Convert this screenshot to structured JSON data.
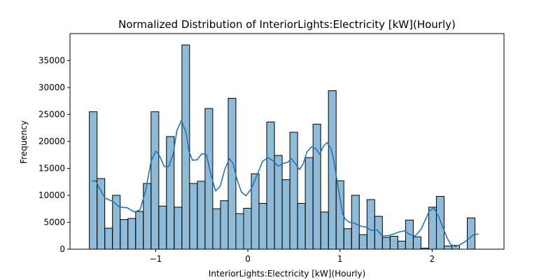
{
  "chart_data": {
    "type": "bar",
    "subtype": "histogram-with-kde",
    "title": "Normalized Distribution of InteriorLights:Electricity [kW](Hourly)",
    "xlabel": "InteriorLights:Electricity [kW](Hourly)",
    "ylabel": "Frequency",
    "xlim": [
      -1.93,
      2.78
    ],
    "ylim": [
      0,
      40000
    ],
    "x_ticks": [
      -1,
      0,
      1,
      2
    ],
    "x_tick_labels": [
      "−1",
      "0",
      "1",
      "2"
    ],
    "y_ticks": [
      0,
      5000,
      10000,
      15000,
      20000,
      25000,
      30000,
      35000
    ],
    "y_tick_labels": [
      "0",
      "5000",
      "10000",
      "15000",
      "20000",
      "25000",
      "30000",
      "35000"
    ],
    "grid": false,
    "legend": "none",
    "bin_start": -1.72,
    "bin_width": 0.0837,
    "values": [
      25500,
      13100,
      3900,
      10000,
      5500,
      5700,
      7000,
      12200,
      25500,
      8000,
      20900,
      7800,
      37900,
      12200,
      12600,
      26100,
      7500,
      9000,
      28000,
      6600,
      7600,
      14000,
      8500,
      23600,
      17400,
      12900,
      21700,
      8500,
      17000,
      23200,
      6900,
      29400,
      12700,
      3800,
      10000,
      2700,
      9200,
      6100,
      2200,
      2400,
      1500,
      5400,
      2300,
      200,
      7800,
      9800,
      600,
      700,
      0,
      5800
    ],
    "kde": {
      "x": [
        -1.69,
        -1.65,
        -1.61,
        -1.55,
        -1.47,
        -1.39,
        -1.31,
        -1.23,
        -1.17,
        -1.11,
        -1.05,
        -1.0,
        -0.96,
        -0.91,
        -0.86,
        -0.81,
        -0.77,
        -0.72,
        -0.67,
        -0.64,
        -0.6,
        -0.55,
        -0.5,
        -0.45,
        -0.4,
        -0.35,
        -0.3,
        -0.25,
        -0.2,
        -0.16,
        -0.12,
        -0.07,
        -0.02,
        0.04,
        0.1,
        0.16,
        0.22,
        0.28,
        0.33,
        0.38,
        0.43,
        0.47,
        0.51,
        0.56,
        0.6,
        0.64,
        0.69,
        0.74,
        0.78,
        0.82,
        0.86,
        0.9,
        0.93,
        0.96,
        1.0,
        1.03,
        1.06,
        1.1,
        1.16,
        1.22,
        1.28,
        1.34,
        1.4,
        1.46,
        1.52,
        1.58,
        1.64,
        1.7,
        1.76,
        1.82,
        1.88,
        1.92,
        1.97,
        2.02,
        2.07,
        2.12,
        2.16,
        2.2,
        2.25,
        2.3,
        2.35,
        2.4,
        2.45,
        2.5
      ],
      "y": [
        12600,
        12700,
        11300,
        9500,
        8900,
        7800,
        7700,
        6900,
        7300,
        10800,
        16300,
        18200,
        17400,
        15400,
        15300,
        17600,
        22000,
        23900,
        21600,
        18200,
        16500,
        16600,
        17700,
        17600,
        13800,
        10800,
        11700,
        14800,
        16800,
        15900,
        13100,
        10600,
        9900,
        11300,
        13700,
        16300,
        17000,
        16300,
        15400,
        15900,
        16100,
        16800,
        16000,
        14800,
        15800,
        18000,
        19000,
        18600,
        17600,
        19100,
        19800,
        18800,
        16800,
        13600,
        9500,
        6500,
        5500,
        5000,
        4800,
        4300,
        4100,
        3500,
        3600,
        2500,
        2500,
        2800,
        3200,
        3400,
        2700,
        2500,
        3700,
        5200,
        7100,
        7600,
        6100,
        3900,
        2200,
        900,
        500,
        800,
        1300,
        2000,
        2700,
        2800
      ]
    }
  }
}
